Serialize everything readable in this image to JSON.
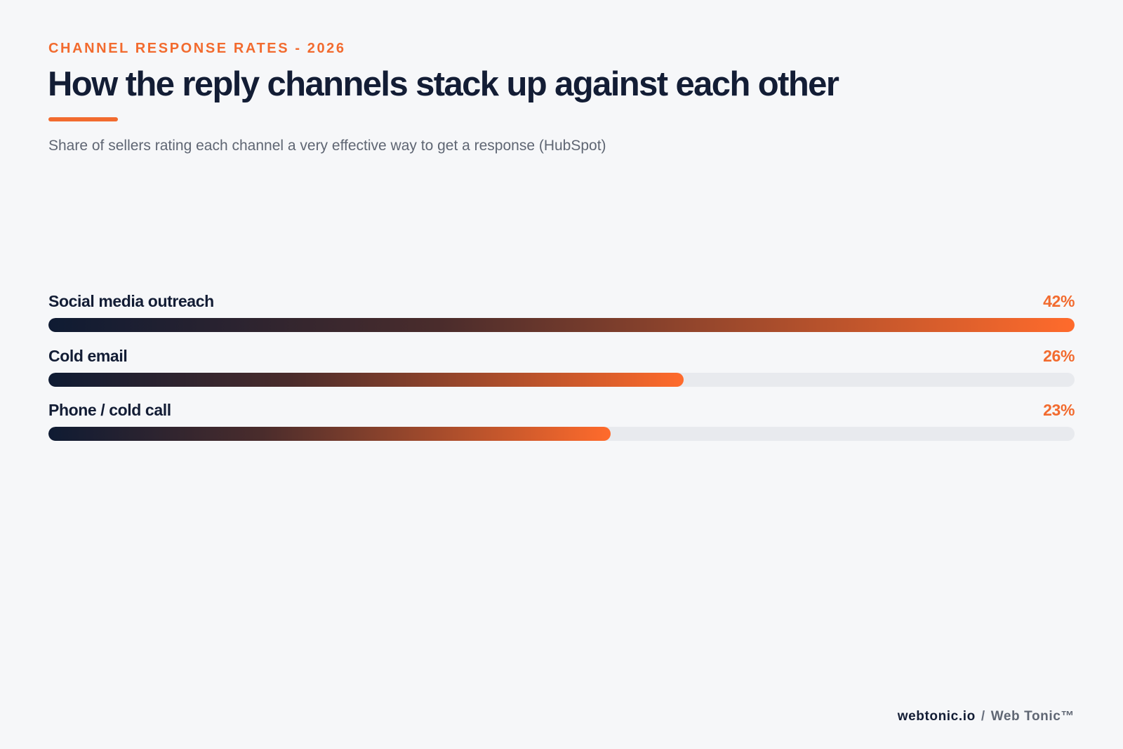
{
  "header": {
    "eyebrow": "CHANNEL RESPONSE RATES - 2026",
    "title": "How the reply channels stack up against each other",
    "subtitle": "Share of sellers rating each channel a very effective way to get a response (HubSpot)"
  },
  "colors": {
    "accent": "#f26b2f",
    "title": "#131d35",
    "track": "#e8eaee",
    "bar_gradient_start": "#0f1b33",
    "bar_gradient_end": "#ff6b2c"
  },
  "chart_data": {
    "type": "bar",
    "orientation": "horizontal",
    "categories": [
      "Social media outreach",
      "Cold email",
      "Phone / cold call"
    ],
    "values": [
      42,
      26,
      23
    ],
    "value_labels": [
      "42%",
      "26%",
      "23%"
    ],
    "unit": "%",
    "xlim": [
      0,
      42
    ],
    "grid": false,
    "legend": "none"
  },
  "footer": {
    "domain": "webtonic.io",
    "separator": "/",
    "brand": "Web Tonic™"
  }
}
